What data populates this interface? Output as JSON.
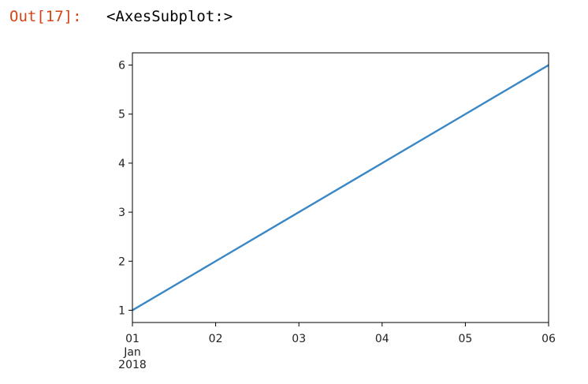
{
  "cell": {
    "prompt": "Out[17]:",
    "output_text": "<AxesSubplot:>"
  },
  "chart_data": {
    "type": "line",
    "x": [
      "2018-01-01",
      "2018-01-02",
      "2018-01-03",
      "2018-01-04",
      "2018-01-05",
      "2018-01-06"
    ],
    "series": [
      {
        "values": [
          1,
          2,
          3,
          4,
          5,
          6
        ],
        "color": "#3a87c5"
      }
    ],
    "title": "",
    "xlabel": "",
    "ylabel": "",
    "ylim": [
      0.75,
      6.25
    ],
    "yticks": [
      "1",
      "2",
      "3",
      "4",
      "5",
      "6"
    ],
    "xtick_labels": [
      "01",
      "02",
      "03",
      "04",
      "05",
      "06"
    ],
    "xtick_first_extra": [
      "Jan",
      "2018"
    ],
    "grid": false,
    "legend": "none"
  }
}
